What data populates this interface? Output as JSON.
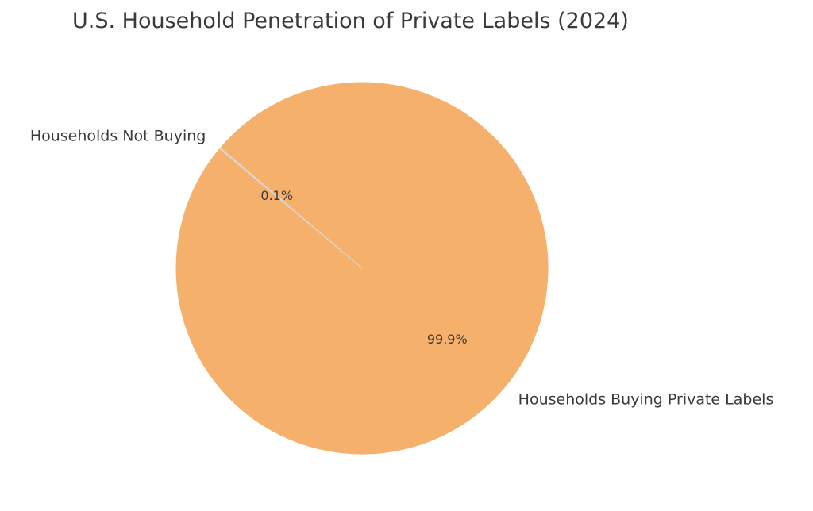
{
  "chart_data": {
    "type": "pie",
    "title": "U.S. Household Penetration of Private Labels (2024)",
    "categories": [
      "Households Buying Private Labels",
      "Households Not Buying"
    ],
    "values": [
      99.9,
      0.1
    ],
    "percent_labels": [
      "99.9%",
      "0.1%"
    ],
    "colors": [
      "#f5b16c",
      "#d9d9d9"
    ],
    "start_angle_deg": 140,
    "direction": "counterclockwise",
    "legend": "none"
  }
}
